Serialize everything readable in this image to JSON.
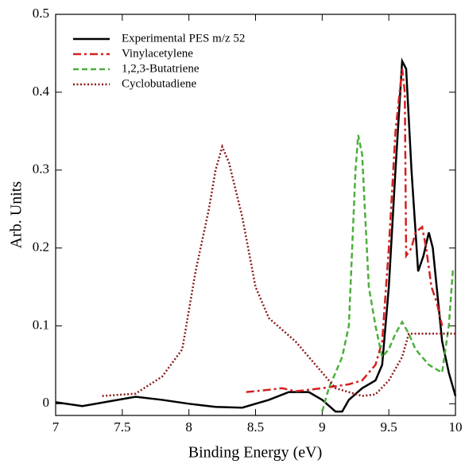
{
  "chart_data": {
    "type": "line",
    "xlabel": "Binding Energy (eV)",
    "ylabel": "Arb. Units",
    "xlim": [
      7,
      10
    ],
    "ylim": [
      -0.015,
      0.5
    ],
    "xticks": [
      7,
      7.5,
      8,
      8.5,
      9,
      9.5,
      10
    ],
    "yticks": [
      0,
      0.1,
      0.2,
      0.3,
      0.4,
      0.5
    ],
    "legend": "upper left",
    "series": [
      {
        "name": "Experimental PES m/z 52",
        "color": "#000000",
        "style": "solid",
        "x": [
          7,
          7.2,
          7.4,
          7.6,
          7.8,
          8.0,
          8.2,
          8.4,
          8.6,
          8.75,
          8.9,
          9.0,
          9.1,
          9.15,
          9.2,
          9.3,
          9.4,
          9.45,
          9.5,
          9.55,
          9.6,
          9.63,
          9.67,
          9.72,
          9.76,
          9.8,
          9.83,
          9.9,
          9.95,
          10.0
        ],
        "values": [
          0.002,
          -0.003,
          0.003,
          0.009,
          0.005,
          0.0,
          -0.004,
          -0.005,
          0.005,
          0.015,
          0.015,
          0.005,
          -0.01,
          -0.01,
          0.005,
          0.02,
          0.03,
          0.05,
          0.15,
          0.3,
          0.44,
          0.43,
          0.3,
          0.17,
          0.19,
          0.22,
          0.2,
          0.08,
          0.04,
          0.01
        ]
      },
      {
        "name": "Vinylacetylene",
        "color": "#d42020",
        "style": "dash-dot",
        "x": [
          8.43,
          8.6,
          8.7,
          8.8,
          9.0,
          9.2,
          9.3,
          9.4,
          9.45,
          9.5,
          9.55,
          9.6,
          9.62,
          9.63,
          9.67,
          9.7,
          9.75,
          9.78,
          9.82,
          9.86,
          9.9
        ],
        "values": [
          0.015,
          0.018,
          0.02,
          0.016,
          0.02,
          0.025,
          0.03,
          0.05,
          0.08,
          0.2,
          0.35,
          0.43,
          0.4,
          0.19,
          0.2,
          0.22,
          0.227,
          0.2,
          0.15,
          0.13,
          0.1
        ]
      },
      {
        "name": "1,2,3-Butatriene",
        "color": "#4caf3c",
        "style": "dashed",
        "x": [
          9.0,
          9.05,
          9.15,
          9.2,
          9.25,
          9.27,
          9.3,
          9.32,
          9.35,
          9.4,
          9.45,
          9.5,
          9.55,
          9.6,
          9.65,
          9.7,
          9.8,
          9.9,
          9.95,
          9.98,
          10.0
        ],
        "values": [
          -0.01,
          0.02,
          0.06,
          0.1,
          0.3,
          0.345,
          0.32,
          0.25,
          0.15,
          0.1,
          0.06,
          0.07,
          0.09,
          0.105,
          0.09,
          0.07,
          0.05,
          0.04,
          0.1,
          0.17,
          0.17
        ]
      },
      {
        "name": "Cyclobutadiene",
        "color": "#8b1a1a",
        "style": "dotted",
        "x": [
          7.35,
          7.6,
          7.8,
          7.95,
          8.05,
          8.15,
          8.2,
          8.25,
          8.3,
          8.4,
          8.5,
          8.6,
          8.8,
          9.0,
          9.1,
          9.2,
          9.3,
          9.4,
          9.5,
          9.6,
          9.65,
          9.75,
          10.0
        ],
        "values": [
          0.01,
          0.013,
          0.035,
          0.07,
          0.17,
          0.25,
          0.3,
          0.33,
          0.31,
          0.24,
          0.15,
          0.11,
          0.08,
          0.04,
          0.02,
          0.015,
          0.01,
          0.012,
          0.03,
          0.06,
          0.09,
          0.09,
          0.09
        ]
      }
    ]
  }
}
